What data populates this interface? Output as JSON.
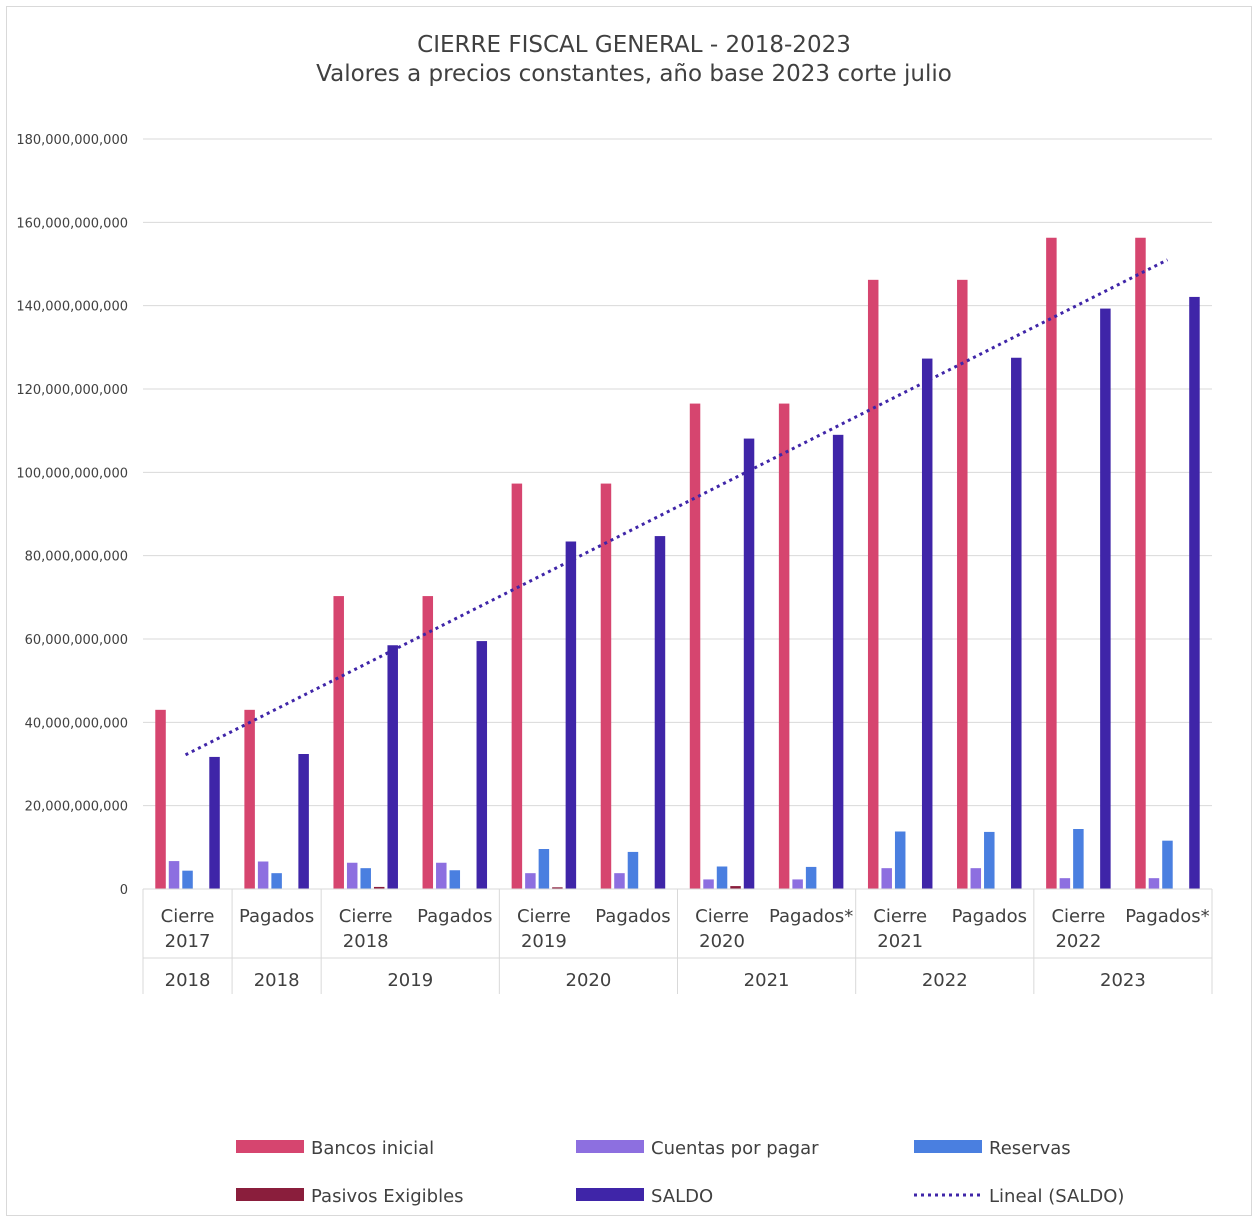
{
  "chart_data": {
    "type": "bar",
    "title": "CIERRE FISCAL GENERAL - 2018-2023",
    "subtitle": "Valores a precios constantes, año base 2023 corte julio",
    "ylim": [
      0,
      180000000000
    ],
    "y_ticks": [
      0,
      20000000000,
      40000000000,
      60000000000,
      80000000000,
      100000000000,
      120000000000,
      140000000000,
      160000000000,
      180000000000
    ],
    "y_tick_labels": [
      "0",
      "20,000,000,000",
      "40,000,000,000",
      "60,000,000,000",
      "80,000,000,000",
      "100,000,000,000",
      "120,000,000,000",
      "140,000,000,000",
      "160,000,000,000",
      "180,000,000,000"
    ],
    "grid": true,
    "legend_position": "bottom",
    "categories": [
      {
        "line1": "Cierre",
        "line2": "2017",
        "group": "2018"
      },
      {
        "line1": "Pagados",
        "line2": "",
        "group": "2018"
      },
      {
        "line1": "Cierre",
        "line2": "2018",
        "group": "2019"
      },
      {
        "line1": "Pagados",
        "line2": "",
        "group": "2019"
      },
      {
        "line1": "Cierre",
        "line2": "2019",
        "group": "2020"
      },
      {
        "line1": "Pagados",
        "line2": "",
        "group": "2020"
      },
      {
        "line1": "Cierre",
        "line2": "2020",
        "group": "2021"
      },
      {
        "line1": "Pagados*",
        "line2": "",
        "group": "2021"
      },
      {
        "line1": "Cierre",
        "line2": "2021",
        "group": "2022"
      },
      {
        "line1": "Pagados",
        "line2": "",
        "group": "2022"
      },
      {
        "line1": "Cierre",
        "line2": "2022",
        "group": "2023"
      },
      {
        "line1": "Pagados*",
        "line2": "",
        "group": "2023"
      }
    ],
    "groups": [
      {
        "label": "2018",
        "span": 1
      },
      {
        "label": "2018",
        "span": 1
      },
      {
        "label": "2019",
        "span": 2
      },
      {
        "label": "2020",
        "span": 2
      },
      {
        "label": "2021",
        "span": 2
      },
      {
        "label": "2022",
        "span": 2
      },
      {
        "label": "2023",
        "span": 2
      }
    ],
    "series": [
      {
        "name": "Bancos inicial",
        "color": "#d6456f",
        "values": [
          43000000000,
          43000000000,
          70300000000,
          70300000000,
          97300000000,
          97300000000,
          116500000000,
          116500000000,
          146200000000,
          146200000000,
          156300000000,
          156300000000
        ]
      },
      {
        "name": "Cuentas por pagar",
        "color": "#8d6fe0",
        "values": [
          6700000000,
          6600000000,
          6300000000,
          6300000000,
          3800000000,
          3800000000,
          2300000000,
          2300000000,
          5000000000,
          5000000000,
          2600000000,
          2600000000
        ]
      },
      {
        "name": "Reservas",
        "color": "#4a7fe0",
        "values": [
          4400000000,
          3800000000,
          5000000000,
          4500000000,
          9600000000,
          8900000000,
          5400000000,
          5300000000,
          13800000000,
          13700000000,
          14400000000,
          11600000000
        ]
      },
      {
        "name": "Pasivos Exigibles",
        "color": "#8a1e3c",
        "values": [
          0,
          0,
          500000000,
          0,
          400000000,
          0,
          700000000,
          0,
          0,
          0,
          0,
          0
        ]
      },
      {
        "name": "SALDO",
        "color": "#3f25a8",
        "values": [
          31700000000,
          32400000000,
          58500000000,
          59500000000,
          83400000000,
          84700000000,
          108100000000,
          109000000000,
          127300000000,
          127500000000,
          139300000000,
          142100000000
        ]
      }
    ],
    "trendline": {
      "name": "Lineal (SALDO)",
      "color": "#3f25a8",
      "of_series": "SALDO",
      "type": "linear",
      "start_value": 32200000000,
      "end_value": 151000000000
    }
  }
}
